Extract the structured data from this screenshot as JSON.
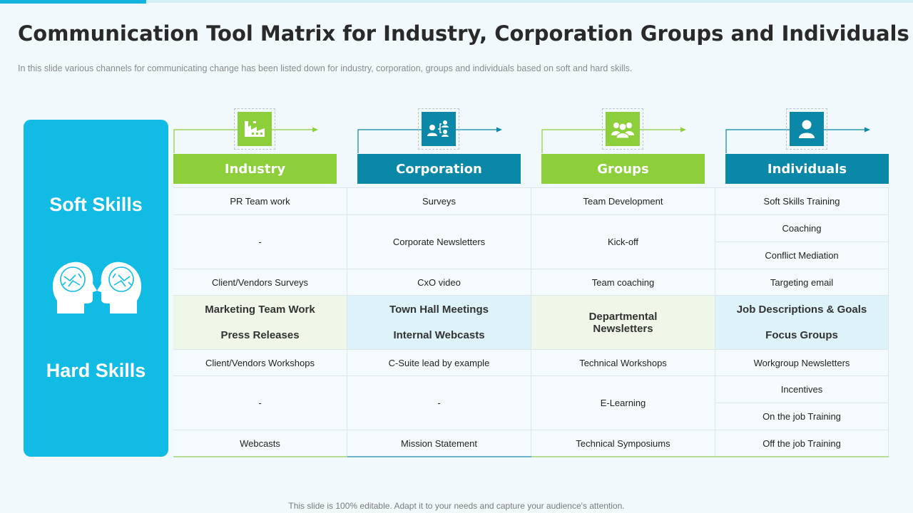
{
  "title": "Communication Tool Matrix for Industry, Corporation Groups and Individuals",
  "subtitle": "In this slide various channels for communicating change has been listed down for industry, corporation, groups and individuals based on soft and hard skills.",
  "side": {
    "soft_label": "Soft Skills",
    "hard_label": "Hard Skills",
    "icon": "brain-heads-icon"
  },
  "colors": {
    "green": "#8ccf3a",
    "teal": "#0b87a8",
    "panel": "#12bbe3"
  },
  "columns": [
    {
      "label": "Industry",
      "icon": "factory-icon"
    },
    {
      "label": "Corporation",
      "icon": "org-chart-icon"
    },
    {
      "label": "Groups",
      "icon": "group-icon"
    },
    {
      "label": "Individuals",
      "icon": "user-icon"
    }
  ],
  "soft": {
    "industry": [
      "PR Team work",
      "-",
      "Client/Vendors Surveys"
    ],
    "corporation": [
      "Surveys",
      "Corporate Newsletters",
      "CxO video"
    ],
    "groups": [
      "Team Development",
      "Kick-off",
      "Team coaching"
    ],
    "individuals": [
      "Soft Skills Training",
      "Coaching",
      "Conflict Mediation",
      "Targeting email"
    ]
  },
  "highlight": {
    "industry": [
      "Marketing Team Work",
      "Press Releases"
    ],
    "corporation": [
      "Town Hall Meetings",
      "Internal Webcasts"
    ],
    "groups": [
      "Departmental",
      "Newsletters"
    ],
    "individuals": [
      "Job Descriptions & Goals",
      "Focus Groups"
    ]
  },
  "hard": {
    "industry": [
      "Client/Vendors Workshops",
      "-",
      "Webcasts"
    ],
    "corporation": [
      "C-Suite lead by example",
      "-",
      "Mission Statement"
    ],
    "groups": [
      "Technical Workshops",
      "E-Learning",
      "Technical Symposiums"
    ],
    "individuals": [
      "Workgroup Newsletters",
      "Incentives",
      "On the job Training",
      "Off the job Training"
    ]
  },
  "footer": "This slide is 100% editable. Adapt it to your needs and capture your audience's attention."
}
